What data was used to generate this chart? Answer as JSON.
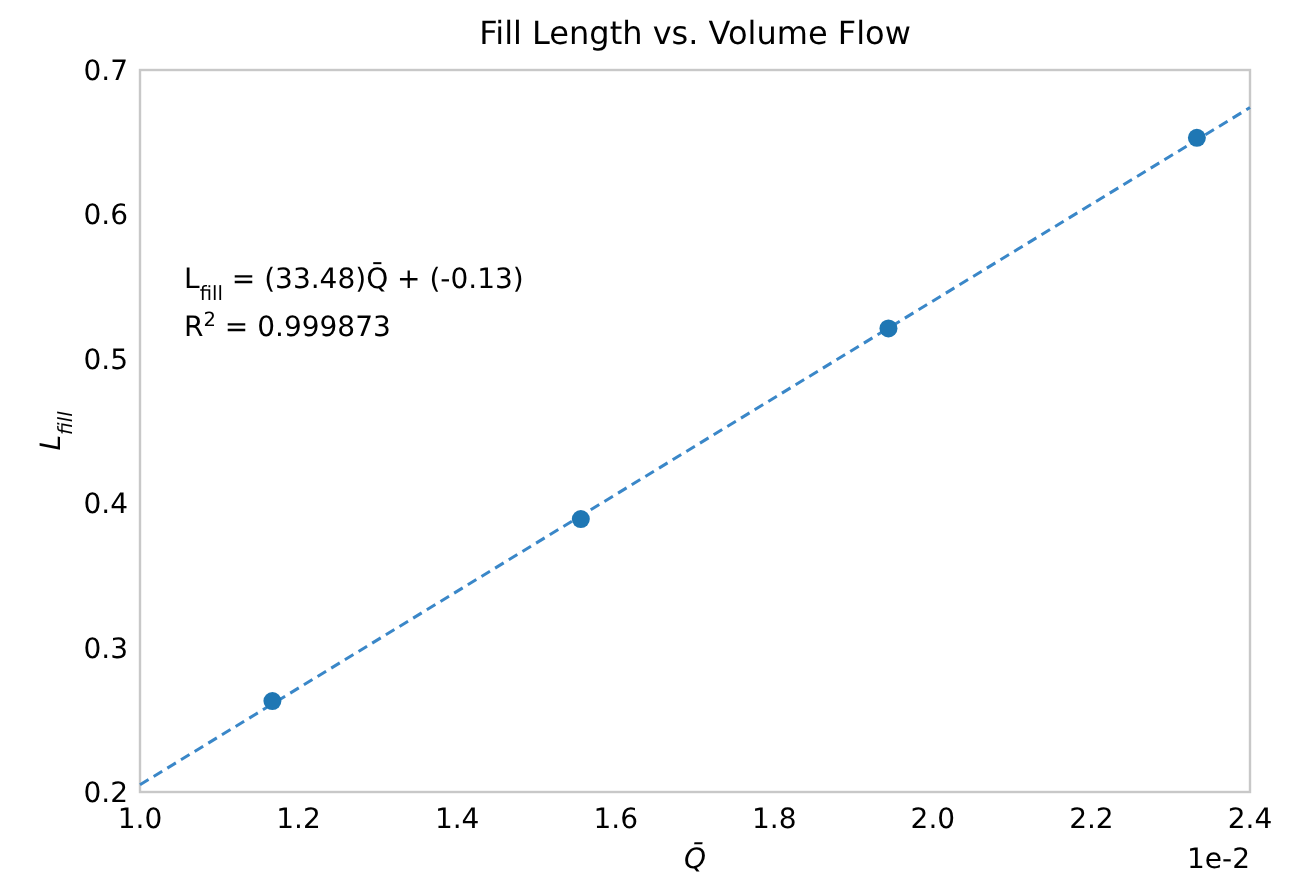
{
  "chart_data": {
    "type": "scatter",
    "title": "Fill Length vs. Volume Flow",
    "xlabel": "Q̄",
    "ylabel": "L$_{fill}$",
    "annotations": [
      "L$_{fill}$  = (33.48)Q̄ + (-0.13)",
      "R$^{2}$ = 0.999873",
      "1e-2"
    ],
    "series": [
      {
        "color": "#1f77b4",
        "marker": "circle",
        "x": [
          1.167,
          1.556,
          1.944,
          2.333
        ],
        "values": [
          0.263,
          0.389,
          0.521,
          0.653
        ]
      },
      {
        "type": "line",
        "color": "#3a87c8",
        "line_style": "dashed",
        "marker": "none",
        "x": [
          1.0,
          2.4
        ],
        "values": [
          0.205,
          0.674
        ]
      }
    ],
    "xlim": [
      1.0,
      2.4
    ],
    "xticks": [
      {
        "value": 1.0,
        "label": "1.0"
      },
      1.2,
      1.4,
      1.6,
      1.8,
      {
        "value": 2.0,
        "label": "2.0"
      },
      2.2,
      2.4
    ],
    "ylim": [
      0.2,
      0.7
    ],
    "yticks": [
      0.2,
      0.3,
      0.4,
      0.5,
      0.6,
      0.7
    ],
    "grid": false
  }
}
